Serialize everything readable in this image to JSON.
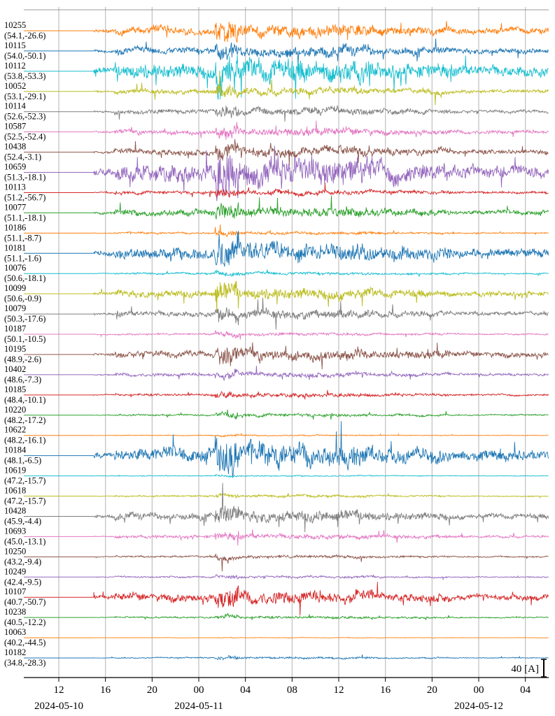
{
  "chart_data": {
    "type": "line",
    "x_axis": {
      "range": [
        "2024-05-10T09:00",
        "2024-05-12T06:00"
      ],
      "tick_labels": [
        "12",
        "16",
        "20",
        "00",
        "04",
        "08",
        "12",
        "16",
        "20",
        "00",
        "04"
      ],
      "tick_times": [
        "2024-05-10T12:00",
        "2024-05-10T16:00",
        "2024-05-10T20:00",
        "2024-05-11T00:00",
        "2024-05-11T04:00",
        "2024-05-11T08:00",
        "2024-05-11T12:00",
        "2024-05-11T16:00",
        "2024-05-11T20:00",
        "2024-05-12T00:00",
        "2024-05-12T04:00"
      ],
      "date_labels": [
        "2024-05-10",
        "2024-05-11",
        "2024-05-12"
      ],
      "grid": true
    },
    "scale_bar": {
      "value": 40,
      "unit_label": "40 [A]"
    },
    "line_start": "2024-05-10T15:00",
    "storm_onset": "2024-05-11T01:45",
    "colors": [
      "#ff7f0e",
      "#1f77b4",
      "#17becf",
      "#bcbd22",
      "#7f7f7f",
      "#e377c2",
      "#8c564b",
      "#9467bd",
      "#d62728",
      "#2ca02c"
    ],
    "series": [
      {
        "id": "10255",
        "coord": "(54.1,-26.6)",
        "color": "#ff7f0e",
        "amplitude": 0.5
      },
      {
        "id": "10115",
        "coord": "(54.0,-50.1)",
        "color": "#1f77b4",
        "amplitude": 0.45
      },
      {
        "id": "10112",
        "coord": "(53.8,-53.3)",
        "color": "#17becf",
        "amplitude": 0.95
      },
      {
        "id": "10052",
        "coord": "(53.1,-29.1)",
        "color": "#bcbd22",
        "amplitude": 0.3
      },
      {
        "id": "10114",
        "coord": "(52.6,-52.3)",
        "color": "#7f7f7f",
        "amplitude": 0.3
      },
      {
        "id": "10587",
        "coord": "(52.5,-52.4)",
        "color": "#e377c2",
        "amplitude": 0.3
      },
      {
        "id": "10438",
        "coord": "(52.4,-3.1)",
        "color": "#8c564b",
        "amplitude": 0.4
      },
      {
        "id": "10659",
        "coord": "(51.3,-18.1)",
        "color": "#9467bd",
        "amplitude": 1.1
      },
      {
        "id": "10113",
        "coord": "(51.2,-56.7)",
        "color": "#d62728",
        "amplitude": 0.2
      },
      {
        "id": "10077",
        "coord": "(51.1,-18.1)",
        "color": "#2ca02c",
        "amplitude": 0.4
      },
      {
        "id": "10186",
        "coord": "(51.1,-8.7)",
        "color": "#ff7f0e",
        "amplitude": 0.12
      },
      {
        "id": "10181",
        "coord": "(51.1,-1.6)",
        "color": "#1f77b4",
        "amplitude": 0.75
      },
      {
        "id": "10076",
        "coord": "(50.6,-18.1)",
        "color": "#17becf",
        "amplitude": 0.12
      },
      {
        "id": "10099",
        "coord": "(50.6,-0.9)",
        "color": "#bcbd22",
        "amplitude": 0.45
      },
      {
        "id": "10079",
        "coord": "(50.3,-17.6)",
        "color": "#7f7f7f",
        "amplitude": 0.35
      },
      {
        "id": "10187",
        "coord": "(50.1,-10.5)",
        "color": "#e377c2",
        "amplitude": 0.12
      },
      {
        "id": "10195",
        "coord": "(48.9,-2.6)",
        "color": "#8c564b",
        "amplitude": 0.45
      },
      {
        "id": "10402",
        "coord": "(48.6,-7.3)",
        "color": "#9467bd",
        "amplitude": 0.2
      },
      {
        "id": "10185",
        "coord": "(48.4,-10.1)",
        "color": "#d62728",
        "amplitude": 0.15
      },
      {
        "id": "10220",
        "coord": "(48.2,-17.2)",
        "color": "#2ca02c",
        "amplitude": 0.12
      },
      {
        "id": "10622",
        "coord": "(48.2,-16.1)",
        "color": "#ff7f0e",
        "amplitude": 0.05
      },
      {
        "id": "10184",
        "coord": "(48.1,-6.5)",
        "color": "#1f77b4",
        "amplitude": 0.9
      },
      {
        "id": "10619",
        "coord": "(47.2,-15.7)",
        "color": "#17becf",
        "amplitude": 0.05
      },
      {
        "id": "10618",
        "coord": "(47.2,-15.7)",
        "color": "#bcbd22",
        "amplitude": 0.1
      },
      {
        "id": "10428",
        "coord": "(45.9,-4.4)",
        "color": "#7f7f7f",
        "amplitude": 0.45
      },
      {
        "id": "10693",
        "coord": "(45.0,-13.1)",
        "color": "#e377c2",
        "amplitude": 0.2
      },
      {
        "id": "10250",
        "coord": "(43.2,-9.4)",
        "color": "#8c564b",
        "amplitude": 0.12
      },
      {
        "id": "10249",
        "coord": "(42.4,-9.5)",
        "color": "#9467bd",
        "amplitude": 0.1
      },
      {
        "id": "10107",
        "coord": "(40.7,-50.7)",
        "color": "#d62728",
        "amplitude": 0.5
      },
      {
        "id": "10238",
        "coord": "(40.5,-12.2)",
        "color": "#2ca02c",
        "amplitude": 0.1
      },
      {
        "id": "10063",
        "coord": "(40.2,-44.5)",
        "color": "#ff7f0e",
        "amplitude": 0.02
      },
      {
        "id": "10182",
        "coord": "(34.8,-28.3)",
        "color": "#1f77b4",
        "amplitude": 0.08
      }
    ]
  }
}
